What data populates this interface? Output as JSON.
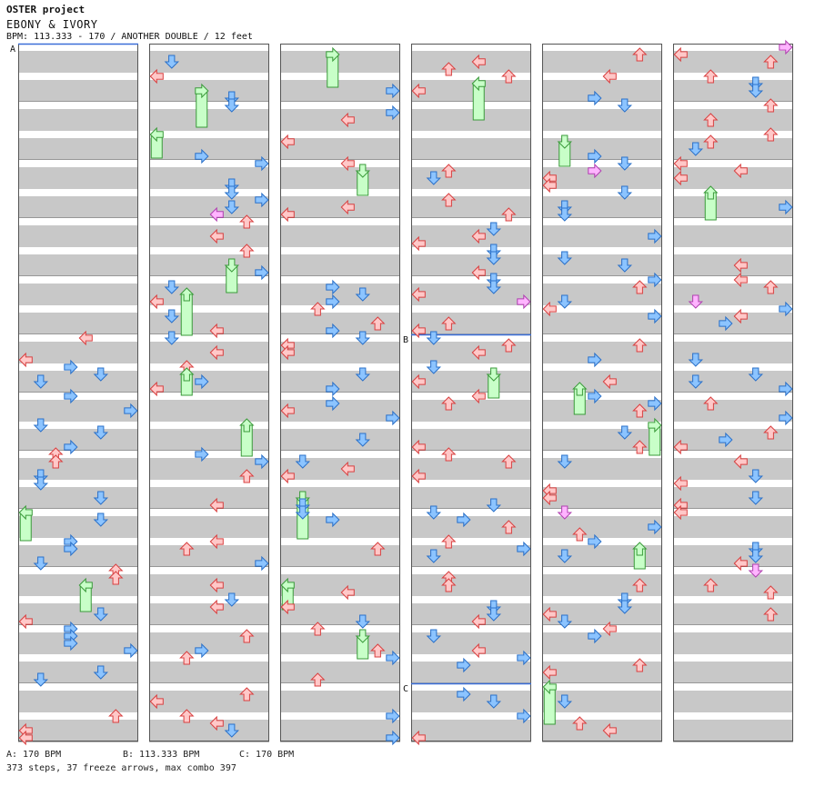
{
  "header": {
    "project": "OSTER project",
    "song_title": "EBONY & IVORY",
    "info": "BPM: 113.333 - 170 / ANOTHER DOUBLE / 12 feet"
  },
  "section_markers": [
    "A",
    "B",
    "C"
  ],
  "footer": {
    "bpm_a": "A: 170 BPM",
    "bpm_b": "B: 113.333 BPM",
    "bpm_c": "C: 170 BPM",
    "stats": "373 steps, 37 freeze arrows, max combo 397"
  },
  "colors": {
    "stripe": "#c8c8c8",
    "red_arrow": "#ffc8c8",
    "red_stroke": "#d84040",
    "blue_arrow": "#8cc4ff",
    "blue_stroke": "#2a70c8",
    "pink_arrow": "#ffb4ff",
    "freeze": "#c8ffc8",
    "freeze_stroke": "#3a9a3a",
    "marker_line": "#3a6ed8"
  },
  "chart_data": {
    "type": "step-chart",
    "mode": "ANOTHER DOUBLE",
    "difficulty_feet": 12,
    "columns": 6,
    "measures_per_column": 12,
    "total_steps": 373,
    "freeze_arrows": 37,
    "max_combo": 397,
    "bpm_sections": [
      {
        "label": "A",
        "bpm": 170
      },
      {
        "label": "B",
        "bpm": 113.333
      },
      {
        "label": "C",
        "bpm": 170
      }
    ]
  }
}
